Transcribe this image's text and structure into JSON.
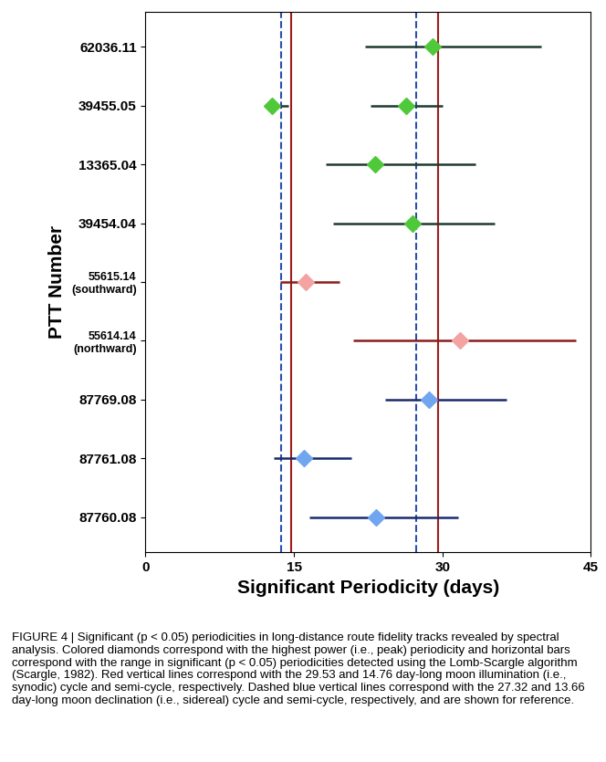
{
  "chart_data": {
    "type": "errorbar",
    "x_label": "Significant Periodicity (days)",
    "y_label": "PTT Number",
    "categories": [
      "62036.11",
      "39455.05",
      "13365.04",
      "39454.04",
      "55615.14\n(southward)",
      "55614.14\n(northward)",
      "87769.08",
      "87761.08",
      "87760.08"
    ],
    "xlim": [
      0,
      45
    ],
    "xticks": [
      0,
      15,
      30,
      45
    ],
    "grid": false,
    "series": [
      {
        "color": "#4fc83a",
        "error_color": "#1f3a2c",
        "marker": "diamond",
        "points": [
          {
            "category": "62036.11",
            "value": 29.0,
            "low": 22.2,
            "high": 40.0
          },
          {
            "category": "39455.05",
            "value": 12.8,
            "low": 12.0,
            "high": 14.4
          },
          {
            "category": "39455.05",
            "value": 26.3,
            "low": 22.7,
            "high": 30.0
          },
          {
            "category": "13365.04",
            "value": 23.2,
            "low": 18.2,
            "high": 33.3
          },
          {
            "category": "39454.04",
            "value": 27.0,
            "low": 19.0,
            "high": 35.3
          }
        ]
      },
      {
        "color": "#f4a3a3",
        "error_color": "#8b1c1c",
        "marker": "diamond",
        "points": [
          {
            "category": "55615.14\n(southward)",
            "value": 16.2,
            "low": 13.6,
            "high": 19.6
          },
          {
            "category": "55614.14\n(northward)",
            "value": 31.8,
            "low": 21.0,
            "high": 43.5
          }
        ]
      },
      {
        "color": "#6fa6ef",
        "error_color": "#1a2a6c",
        "marker": "diamond",
        "points": [
          {
            "category": "87769.08",
            "value": 28.6,
            "low": 24.2,
            "high": 36.5
          },
          {
            "category": "87761.08",
            "value": 16.0,
            "low": 13.0,
            "high": 20.8
          },
          {
            "category": "87760.08",
            "value": 23.3,
            "low": 16.6,
            "high": 31.6
          }
        ]
      }
    ],
    "reference_lines": [
      {
        "value": 29.53,
        "color": "#a01c1c",
        "line_style": "solid"
      },
      {
        "value": 14.76,
        "color": "#a01c1c",
        "line_style": "solid"
      },
      {
        "value": 27.32,
        "color": "#2a4fb0",
        "line_style": "dashed"
      },
      {
        "value": 13.66,
        "color": "#2a4fb0",
        "line_style": "dashed"
      }
    ],
    "caption": "FIGURE 4 | Significant (p < 0.05) periodicities in long-distance route fidelity tracks revealed by spectral analysis. Colored diamonds correspond with the highest power (i.e., peak) periodicity and horizontal bars correspond with the range in significant (p < 0.05) periodicities detected using the Lomb-Scargle algorithm (Scargle, 1982). Red vertical lines correspond with the 29.53 and 14.76 day-long moon illumination (i.e., synodic) cycle and semi-cycle, respectively. Dashed blue vertical lines correspond with the 27.32 and 13.66 day-long moon declination (i.e., sidereal) cycle and semi-cycle, respectively, and are shown for reference."
  }
}
